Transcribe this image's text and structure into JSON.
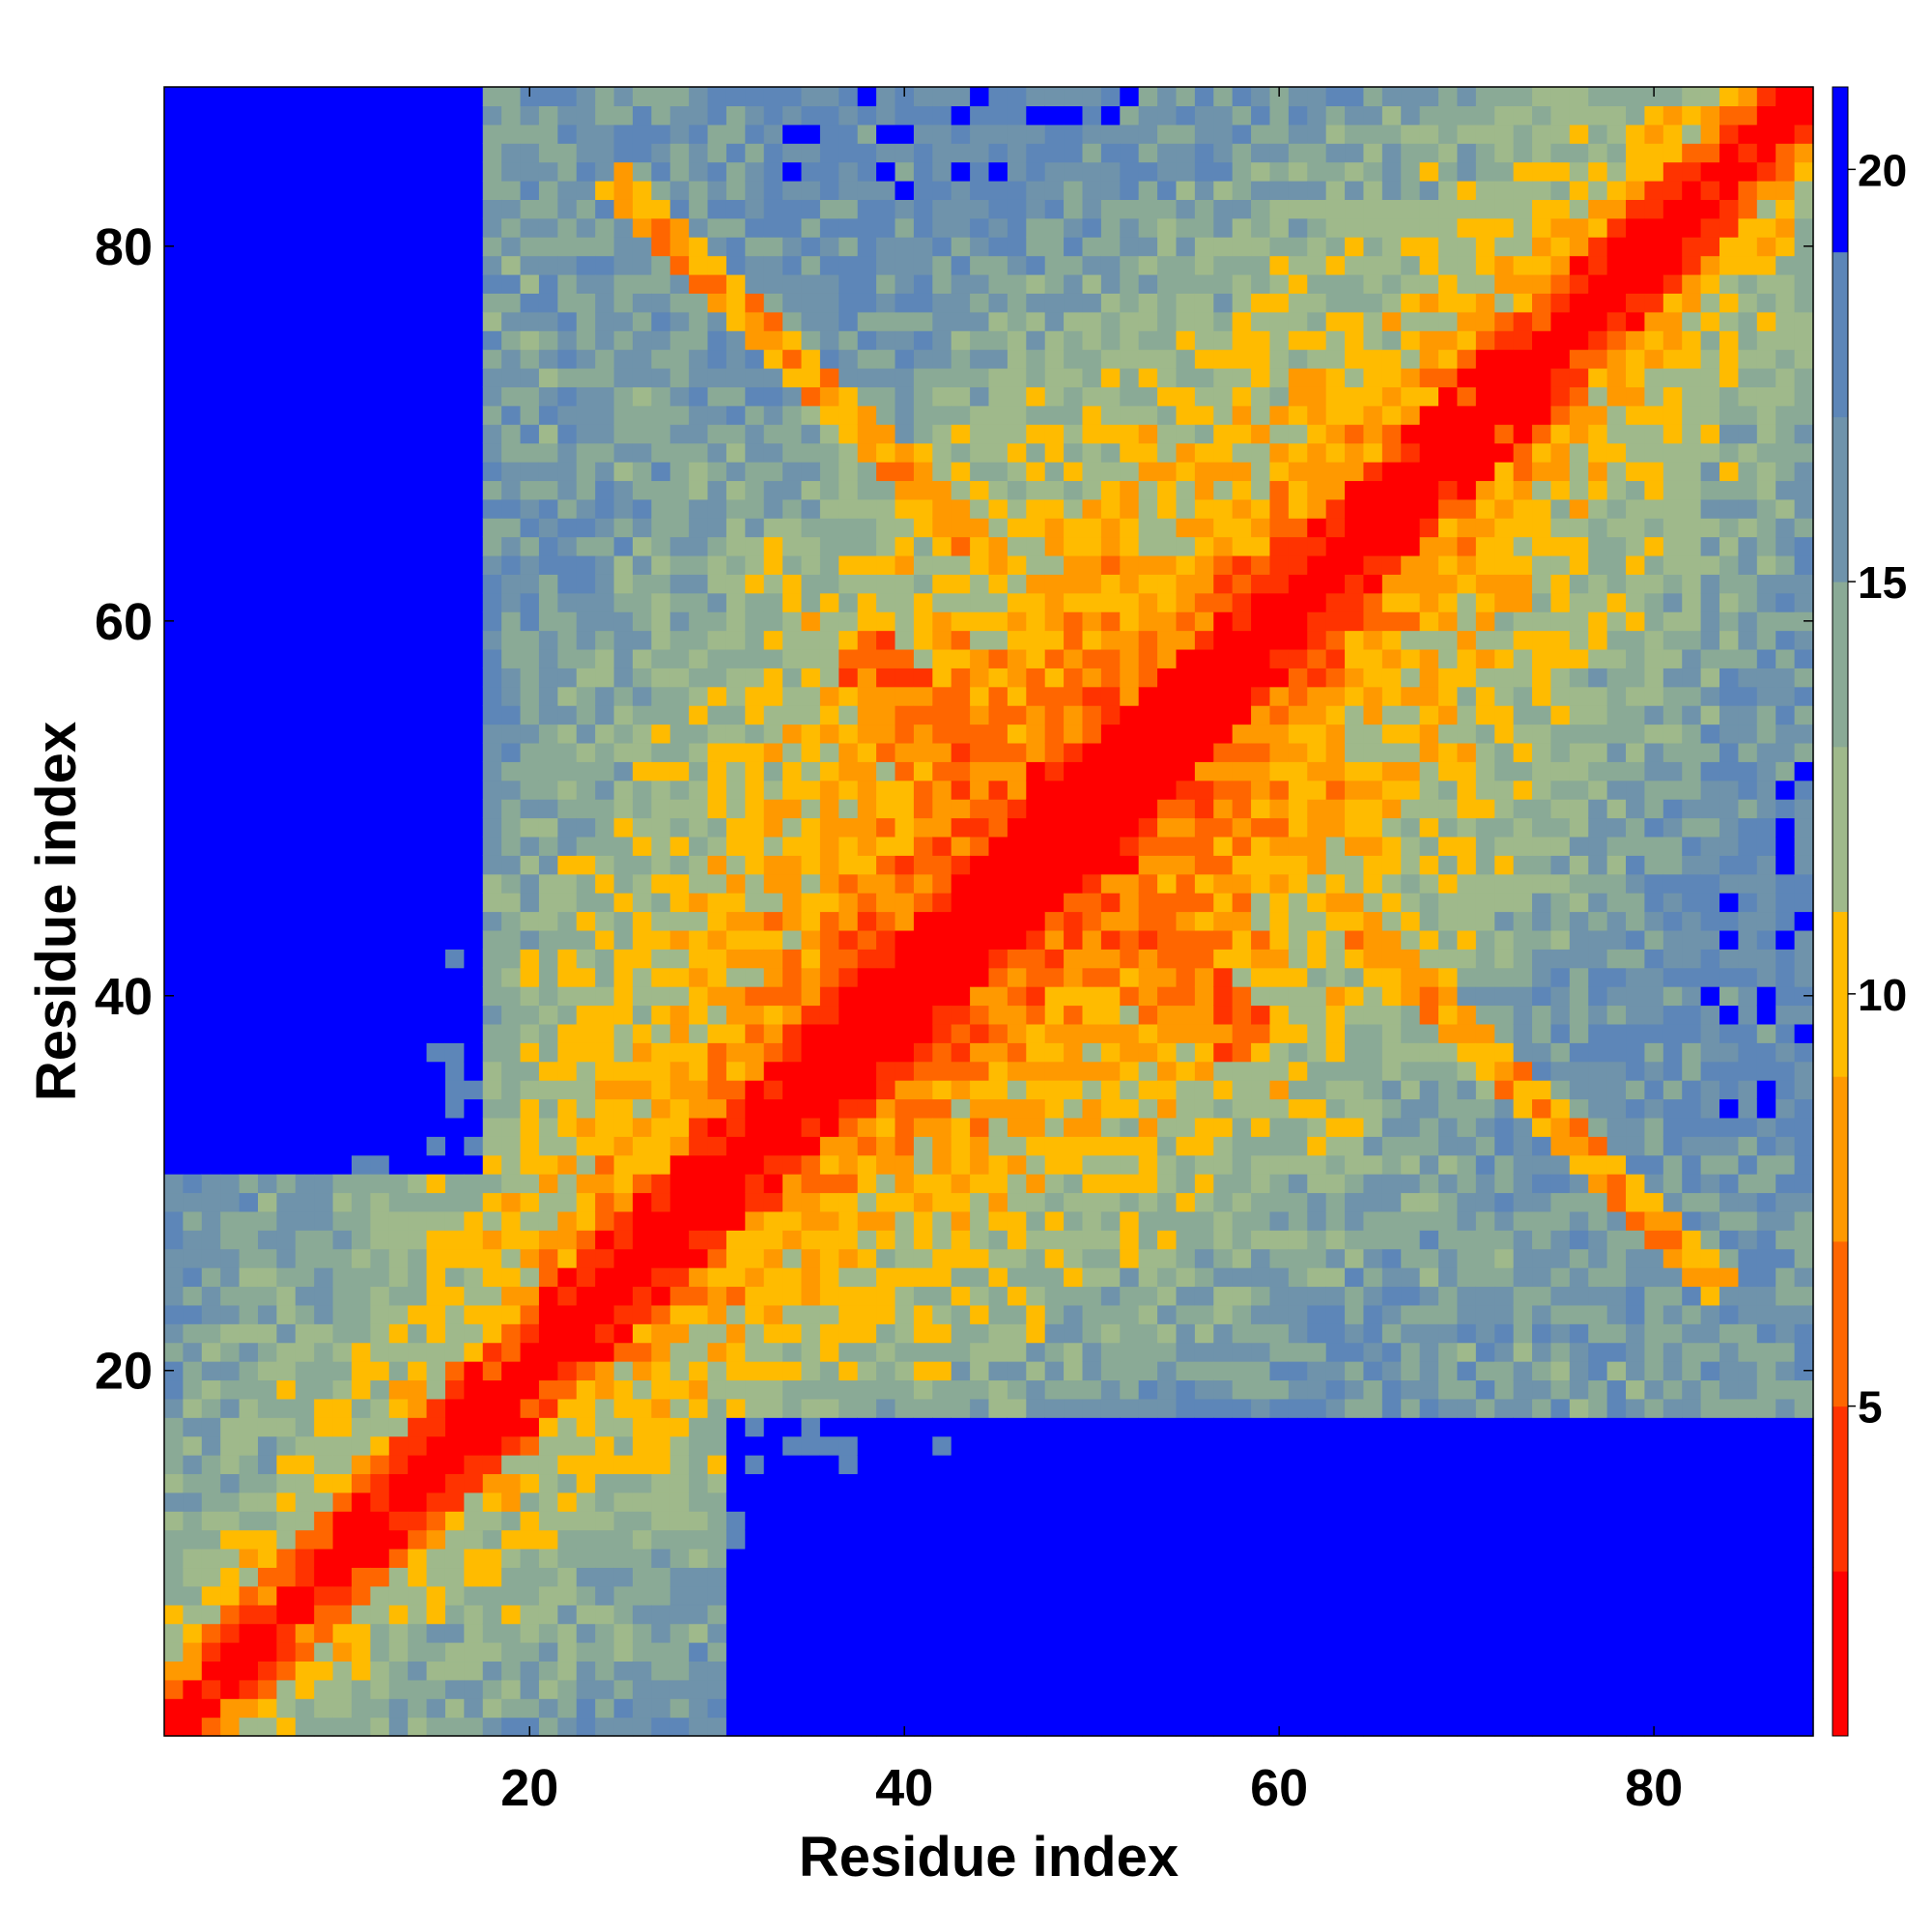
{
  "chart_data": {
    "type": "heatmap",
    "title": "",
    "xlabel": "Residue index",
    "ylabel": "Residue index",
    "n_residues": 88,
    "xlim": [
      0.5,
      88.5
    ],
    "ylim": [
      0.5,
      88.5
    ],
    "x_ticks": [
      20,
      40,
      60,
      80
    ],
    "y_ticks": [
      20,
      40,
      60,
      80
    ],
    "colorbar": {
      "range": [
        1,
        21
      ],
      "ticks": [
        5,
        10,
        15,
        20
      ],
      "colors": [
        "#ff0000",
        "#ff3300",
        "#ff6600",
        "#ff9900",
        "#ffbb00",
        "#9fb98b",
        "#8aaa96",
        "#6f93ab",
        "#5d86b8",
        "#0000ff"
      ]
    },
    "grid": false,
    "legend": "colorbar-right"
  }
}
